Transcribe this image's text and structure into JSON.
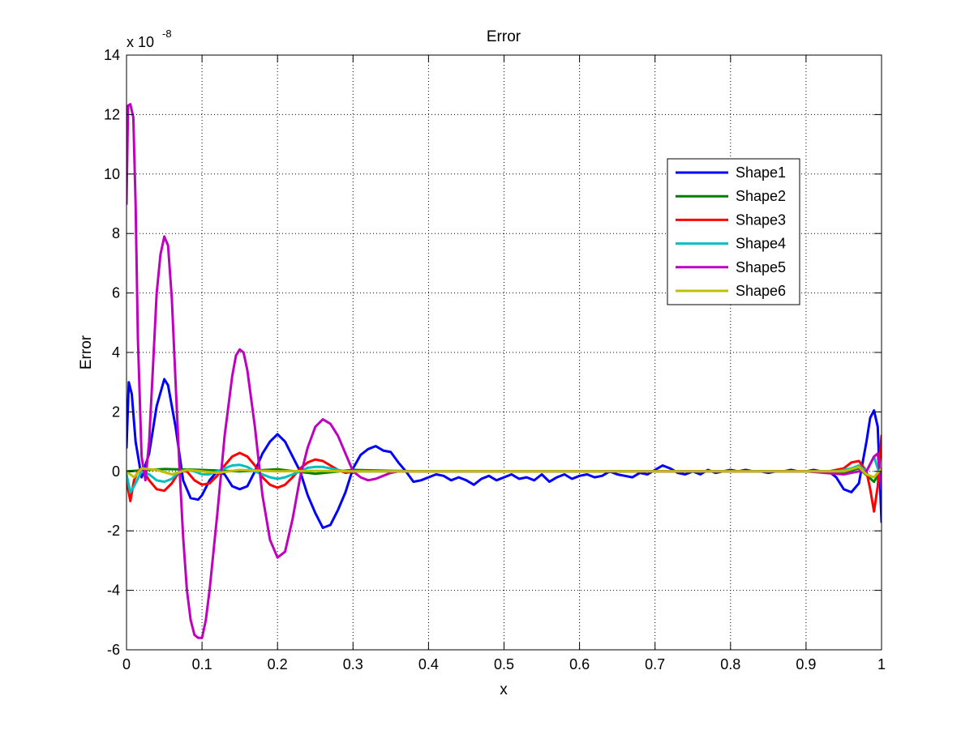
{
  "chart_data": {
    "type": "line",
    "title": "Error",
    "xlabel": "x",
    "ylabel": "Error",
    "exponent_label": {
      "base": "x 10",
      "power": "-8"
    },
    "xlim": [
      0,
      1
    ],
    "ylim": [
      -6,
      14
    ],
    "xticks": [
      0,
      0.1,
      0.2,
      0.3,
      0.4,
      0.5,
      0.6,
      0.7,
      0.8,
      0.9,
      1
    ],
    "xtick_labels": [
      "0",
      "0.1",
      "0.2",
      "0.3",
      "0.4",
      "0.5",
      "0.6",
      "0.7",
      "0.8",
      "0.9",
      "1"
    ],
    "yticks": [
      -6,
      -4,
      -2,
      0,
      2,
      4,
      6,
      8,
      10,
      12,
      14
    ],
    "ytick_labels": [
      "-6",
      "-4",
      "-2",
      "0",
      "2",
      "4",
      "6",
      "8",
      "10",
      "12",
      "14"
    ],
    "grid": true,
    "legend_position": "top-right",
    "series": [
      {
        "name": "Shape1",
        "color": "#0000ff",
        "x": [
          0,
          0.003,
          0.007,
          0.012,
          0.02,
          0.03,
          0.04,
          0.05,
          0.055,
          0.065,
          0.075,
          0.085,
          0.095,
          0.1,
          0.11,
          0.12,
          0.13,
          0.14,
          0.15,
          0.16,
          0.17,
          0.18,
          0.19,
          0.2,
          0.21,
          0.22,
          0.23,
          0.24,
          0.25,
          0.26,
          0.27,
          0.28,
          0.29,
          0.3,
          0.31,
          0.32,
          0.33,
          0.34,
          0.35,
          0.36,
          0.37,
          0.38,
          0.39,
          0.4,
          0.41,
          0.42,
          0.43,
          0.44,
          0.45,
          0.46,
          0.47,
          0.48,
          0.49,
          0.5,
          0.51,
          0.52,
          0.53,
          0.54,
          0.55,
          0.56,
          0.57,
          0.58,
          0.59,
          0.6,
          0.61,
          0.62,
          0.63,
          0.64,
          0.65,
          0.66,
          0.67,
          0.68,
          0.69,
          0.7,
          0.71,
          0.72,
          0.73,
          0.74,
          0.75,
          0.76,
          0.77,
          0.78,
          0.79,
          0.8,
          0.81,
          0.82,
          0.83,
          0.84,
          0.85,
          0.86,
          0.87,
          0.88,
          0.89,
          0.9,
          0.91,
          0.92,
          0.93,
          0.94,
          0.95,
          0.96,
          0.97,
          0.975,
          0.98,
          0.985,
          0.99,
          0.995,
          1
        ],
        "y": [
          0.8,
          3.0,
          2.6,
          1.0,
          -0.2,
          0.6,
          2.2,
          3.1,
          2.9,
          1.5,
          -0.3,
          -0.9,
          -0.95,
          -0.8,
          -0.3,
          0.0,
          -0.1,
          -0.5,
          -0.6,
          -0.5,
          0.0,
          0.6,
          1.0,
          1.25,
          1.0,
          0.5,
          0.0,
          -0.8,
          -1.4,
          -1.9,
          -1.8,
          -1.3,
          -0.7,
          0.1,
          0.55,
          0.75,
          0.85,
          0.7,
          0.65,
          0.3,
          0.0,
          -0.35,
          -0.3,
          -0.2,
          -0.1,
          -0.15,
          -0.3,
          -0.2,
          -0.3,
          -0.45,
          -0.25,
          -0.15,
          -0.3,
          -0.2,
          -0.1,
          -0.25,
          -0.2,
          -0.3,
          -0.1,
          -0.35,
          -0.2,
          -0.1,
          -0.25,
          -0.15,
          -0.1,
          -0.2,
          -0.15,
          0.0,
          -0.1,
          -0.15,
          -0.2,
          -0.05,
          -0.1,
          0.05,
          0.2,
          0.1,
          -0.05,
          -0.1,
          0.0,
          -0.1,
          0.05,
          -0.05,
          0.0,
          0.05,
          0.0,
          0.05,
          0.0,
          0.0,
          -0.05,
          0.0,
          0.0,
          0.05,
          0.0,
          0.0,
          0.05,
          0.0,
          0.0,
          -0.2,
          -0.6,
          -0.7,
          -0.4,
          0.3,
          1.0,
          1.8,
          2.05,
          1.5,
          -1.7
        ]
      },
      {
        "name": "Shape2",
        "color": "#007f00",
        "x": [
          0,
          0.05,
          0.1,
          0.15,
          0.2,
          0.25,
          0.3,
          0.35,
          0.4,
          0.5,
          0.6,
          0.7,
          0.8,
          0.9,
          0.95,
          0.97,
          0.99,
          1
        ],
        "y": [
          0.0,
          0.08,
          0.05,
          0.0,
          0.07,
          -0.08,
          0.05,
          0.02,
          0.0,
          0.0,
          0.0,
          0.0,
          0.0,
          0.0,
          -0.05,
          0.1,
          -0.35,
          0.05
        ]
      },
      {
        "name": "Shape3",
        "color": "#ff0000",
        "x": [
          0,
          0.005,
          0.01,
          0.015,
          0.02,
          0.03,
          0.04,
          0.05,
          0.06,
          0.07,
          0.08,
          0.09,
          0.1,
          0.11,
          0.12,
          0.13,
          0.14,
          0.15,
          0.16,
          0.17,
          0.18,
          0.19,
          0.2,
          0.21,
          0.22,
          0.23,
          0.24,
          0.25,
          0.26,
          0.27,
          0.28,
          0.29,
          0.3,
          0.32,
          0.35,
          0.4,
          0.5,
          0.6,
          0.7,
          0.8,
          0.9,
          0.93,
          0.95,
          0.96,
          0.97,
          0.98,
          0.985,
          0.99,
          0.995,
          1
        ],
        "y": [
          -0.3,
          -1.0,
          -0.3,
          0.0,
          0.1,
          -0.3,
          -0.6,
          -0.65,
          -0.4,
          0.0,
          0.0,
          -0.3,
          -0.45,
          -0.4,
          -0.15,
          0.2,
          0.5,
          0.62,
          0.5,
          0.2,
          -0.2,
          -0.45,
          -0.55,
          -0.45,
          -0.2,
          0.1,
          0.3,
          0.4,
          0.35,
          0.2,
          0.05,
          -0.05,
          0.0,
          0.0,
          0.0,
          0.0,
          0.0,
          0.0,
          0.0,
          0.0,
          0.0,
          0.0,
          0.1,
          0.3,
          0.35,
          0.0,
          -0.6,
          -1.35,
          -0.5,
          1.2
        ]
      },
      {
        "name": "Shape4",
        "color": "#00bfbf",
        "x": [
          0,
          0.005,
          0.01,
          0.02,
          0.03,
          0.04,
          0.05,
          0.06,
          0.07,
          0.08,
          0.09,
          0.1,
          0.11,
          0.12,
          0.13,
          0.14,
          0.15,
          0.16,
          0.17,
          0.18,
          0.19,
          0.2,
          0.21,
          0.22,
          0.23,
          0.24,
          0.25,
          0.26,
          0.27,
          0.28,
          0.29,
          0.3,
          0.35,
          0.4,
          0.5,
          0.6,
          0.7,
          0.8,
          0.9,
          0.94,
          0.96,
          0.97,
          0.98,
          0.99,
          1
        ],
        "y": [
          -0.1,
          -0.7,
          -0.5,
          0.0,
          -0.1,
          -0.3,
          -0.35,
          -0.25,
          0.0,
          0.05,
          0.0,
          -0.1,
          -0.1,
          0.0,
          0.1,
          0.2,
          0.22,
          0.15,
          0.0,
          -0.1,
          -0.2,
          -0.25,
          -0.2,
          -0.1,
          0.0,
          0.12,
          0.15,
          0.15,
          0.1,
          0.05,
          0.0,
          0.0,
          0.0,
          0.0,
          0.0,
          0.0,
          0.0,
          0.0,
          0.0,
          0.0,
          0.1,
          0.2,
          0.0,
          0.5,
          -0.3
        ]
      },
      {
        "name": "Shape5",
        "color": "#bf00bf",
        "x": [
          0,
          0.002,
          0.005,
          0.009,
          0.012,
          0.015,
          0.02,
          0.025,
          0.03,
          0.035,
          0.04,
          0.045,
          0.05,
          0.055,
          0.06,
          0.065,
          0.07,
          0.075,
          0.08,
          0.085,
          0.09,
          0.095,
          0.1,
          0.105,
          0.11,
          0.12,
          0.13,
          0.14,
          0.145,
          0.15,
          0.155,
          0.16,
          0.17,
          0.18,
          0.19,
          0.2,
          0.21,
          0.22,
          0.23,
          0.24,
          0.25,
          0.26,
          0.27,
          0.28,
          0.29,
          0.3,
          0.31,
          0.32,
          0.33,
          0.34,
          0.35,
          0.36,
          0.37,
          0.4,
          0.5,
          0.6,
          0.7,
          0.8,
          0.9,
          0.95,
          0.97,
          0.98,
          0.99,
          0.995,
          1
        ],
        "y": [
          9.0,
          12.3,
          12.35,
          11.9,
          9.0,
          4.5,
          0.5,
          -0.3,
          1.0,
          3.5,
          6.0,
          7.3,
          7.9,
          7.6,
          5.8,
          3.0,
          0.2,
          -2.2,
          -4.0,
          -5.0,
          -5.5,
          -5.6,
          -5.6,
          -5.0,
          -4.0,
          -1.5,
          1.2,
          3.2,
          3.9,
          4.1,
          4.0,
          3.4,
          1.5,
          -0.8,
          -2.3,
          -2.9,
          -2.7,
          -1.6,
          -0.2,
          0.8,
          1.5,
          1.75,
          1.6,
          1.2,
          0.6,
          0.0,
          -0.2,
          -0.3,
          -0.25,
          -0.15,
          -0.05,
          0.0,
          0.0,
          0.0,
          0.0,
          0.0,
          0.0,
          0.0,
          0.0,
          -0.1,
          0.0,
          0.0,
          0.5,
          0.6,
          -0.6
        ]
      },
      {
        "name": "Shape6",
        "color": "#bfbf00",
        "x": [
          0,
          0.01,
          0.02,
          0.04,
          0.06,
          0.08,
          0.1,
          0.12,
          0.15,
          0.2,
          0.25,
          0.3,
          0.4,
          0.5,
          0.6,
          0.7,
          0.8,
          0.9,
          0.95,
          0.97,
          0.98,
          0.99,
          1
        ],
        "y": [
          0.0,
          -0.2,
          0.1,
          0.05,
          -0.1,
          0.05,
          0.0,
          -0.05,
          0.05,
          0.0,
          0.02,
          0.0,
          0.0,
          0.0,
          0.0,
          0.0,
          0.0,
          0.0,
          0.0,
          0.15,
          -0.1,
          -0.2,
          0.1
        ]
      }
    ]
  }
}
